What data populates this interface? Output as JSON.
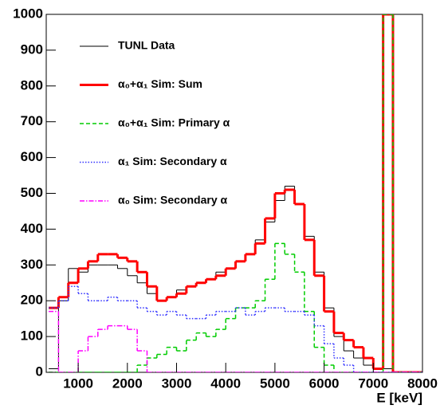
{
  "chart_data": {
    "type": "histogram",
    "x_label": "E [keV]",
    "xlim": [
      350,
      8000
    ],
    "ylim": [
      0,
      1000
    ],
    "xticks": [
      1000,
      2000,
      3000,
      4000,
      5000,
      6000,
      7000,
      8000
    ],
    "yticks": [
      0,
      100,
      200,
      300,
      400,
      500,
      600,
      700,
      800,
      900,
      1000
    ],
    "bins": [
      400,
      600,
      800,
      1000,
      1200,
      1400,
      1600,
      1800,
      2000,
      2200,
      2400,
      2600,
      2800,
      3000,
      3200,
      3400,
      3600,
      3800,
      4000,
      4200,
      4400,
      4600,
      4800,
      5000,
      5200,
      5400,
      5600,
      5800,
      6000,
      6200,
      6400,
      6600,
      6800,
      7000,
      7200,
      7400,
      7600,
      7800,
      8000
    ],
    "legend_position": "upper left",
    "series": [
      {
        "name": "TUNL Data",
        "color": "#000000",
        "style": "solid",
        "width": 1,
        "values": [
          10,
          200,
          290,
          280,
          300,
          300,
          300,
          290,
          270,
          250,
          220,
          200,
          210,
          230,
          240,
          250,
          260,
          280,
          290,
          310,
          330,
          370,
          420,
          480,
          520,
          470,
          380,
          280,
          180,
          100,
          60,
          40,
          20,
          10,
          10,
          0,
          0,
          0
        ]
      },
      {
        "name": "α₀+α₁ Sim: Sum",
        "color": "#ff0000",
        "style": "solid",
        "width": 3,
        "values": [
          180,
          210,
          250,
          290,
          310,
          330,
          330,
          320,
          310,
          280,
          240,
          200,
          210,
          220,
          240,
          250,
          260,
          270,
          290,
          310,
          330,
          360,
          430,
          500,
          510,
          470,
          370,
          270,
          170,
          110,
          90,
          70,
          40,
          10,
          1000,
          0,
          0,
          0
        ]
      },
      {
        "name": "α₀+α₁ Sim: Primary α",
        "color": "#00cc00",
        "style": "dashed",
        "width": 1.5,
        "values": [
          0,
          0,
          0,
          0,
          0,
          0,
          0,
          0,
          0,
          20,
          40,
          50,
          70,
          60,
          90,
          110,
          100,
          120,
          150,
          180,
          180,
          200,
          260,
          360,
          330,
          280,
          170,
          70,
          20,
          0,
          0,
          0,
          0,
          0,
          1000,
          0,
          0,
          0
        ]
      },
      {
        "name": "α₁ Sim: Secondary α",
        "color": "#3333ff",
        "style": "dotted",
        "width": 1.5,
        "values": [
          180,
          200,
          240,
          220,
          200,
          200,
          210,
          200,
          200,
          180,
          170,
          160,
          170,
          160,
          150,
          150,
          160,
          170,
          170,
          180,
          160,
          170,
          180,
          180,
          170,
          170,
          160,
          130,
          80,
          40,
          20,
          0,
          0,
          0,
          0,
          0,
          0,
          0
        ]
      },
      {
        "name": "α₀ Sim: Secondary α",
        "color": "#ff00ff",
        "style": "dashdot",
        "width": 1.5,
        "values": [
          170,
          0,
          0,
          60,
          100,
          120,
          130,
          130,
          120,
          60,
          0,
          0,
          0,
          0,
          0,
          0,
          0,
          0,
          0,
          0,
          0,
          0,
          0,
          0,
          0,
          0,
          0,
          0,
          0,
          0,
          0,
          0,
          0,
          0,
          0,
          0,
          0,
          0
        ]
      }
    ]
  }
}
